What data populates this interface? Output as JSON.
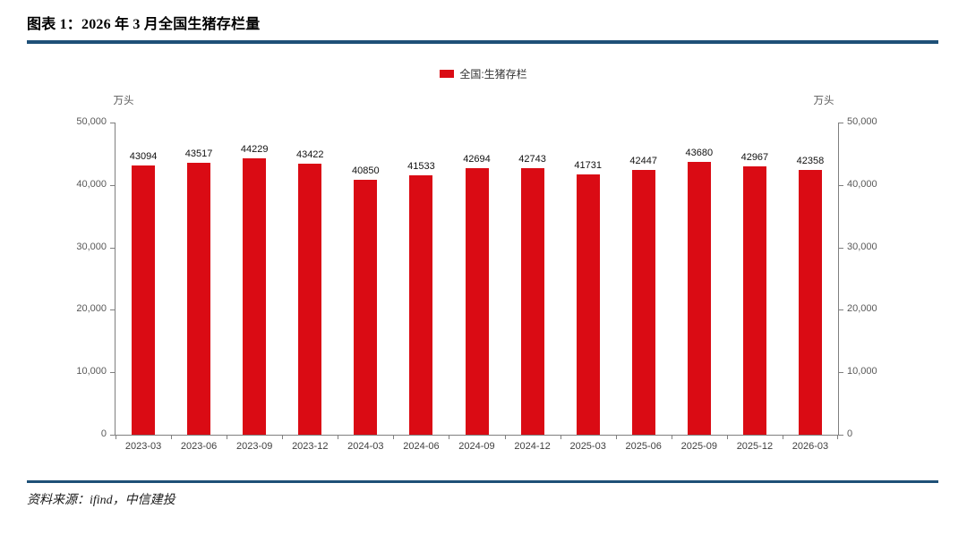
{
  "header": {
    "title": "图表 1：2026 年 3 月全国生猪存栏量"
  },
  "chart_data": {
    "type": "bar",
    "title": "2026 年 3 月全国生猪存栏量",
    "legend": "全国:生猪存栏",
    "unit": "万头",
    "categories": [
      "2023-03",
      "2023-06",
      "2023-09",
      "2023-12",
      "2024-03",
      "2024-06",
      "2024-09",
      "2024-12",
      "2025-03",
      "2025-06",
      "2025-09",
      "2025-12",
      "2026-03"
    ],
    "values": [
      43094,
      43517,
      44229,
      43422,
      40850,
      41533,
      42694,
      42743,
      41731,
      42447,
      43680,
      42967,
      42358
    ],
    "ylim": [
      0,
      50000
    ],
    "ytick_values": [
      0,
      10000,
      20000,
      30000,
      40000,
      50000
    ],
    "ytick_labels": [
      "0",
      "10,000",
      "20,000",
      "30,000",
      "40,000",
      "50,000"
    ],
    "xlabel": "",
    "ylabel": "万头",
    "grid": false,
    "legend_position": "top-center",
    "bar_color": "#da0b14"
  },
  "colors": {
    "bar": "#da0b14",
    "rule": "#1e5077",
    "axis": "#7f7f7f",
    "tick_text": "#595959"
  },
  "footer": {
    "source": "资料来源：ifind，中信建投"
  }
}
